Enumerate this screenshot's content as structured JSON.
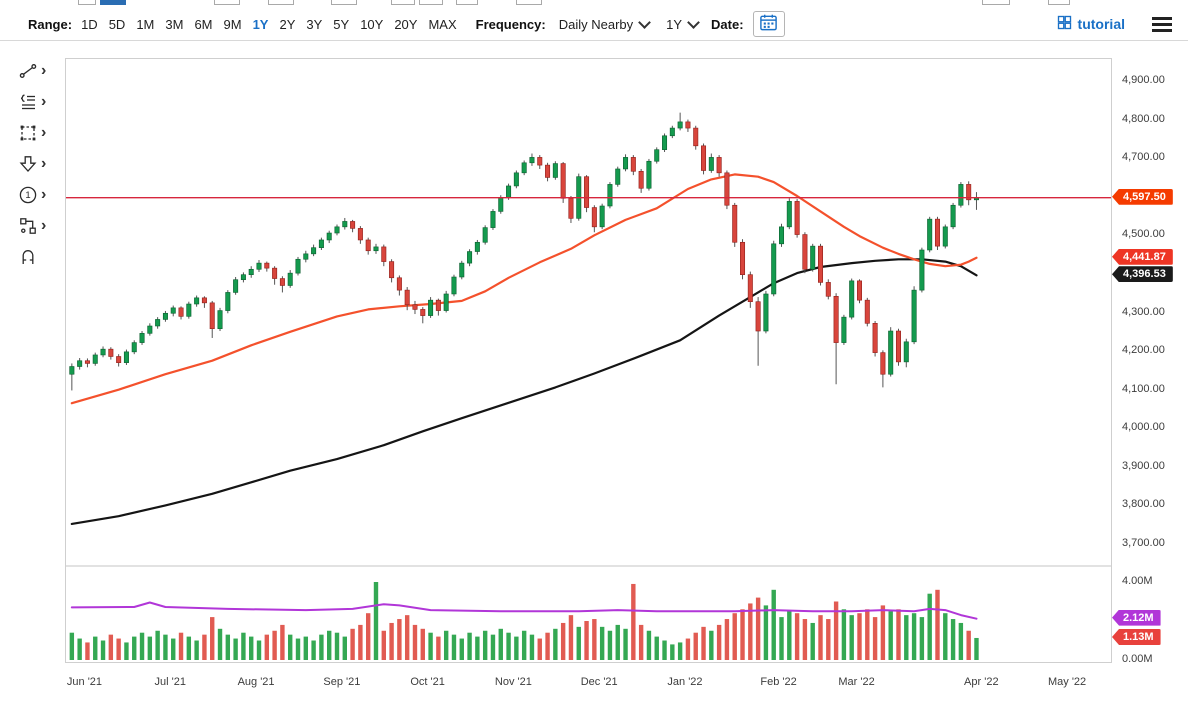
{
  "toolbar": {
    "range_label": "Range:",
    "ranges": [
      "1D",
      "5D",
      "1M",
      "3M",
      "6M",
      "9M",
      "1Y",
      "2Y",
      "3Y",
      "5Y",
      "10Y",
      "20Y",
      "MAX"
    ],
    "selected_range": "1Y",
    "frequency_label": "Frequency:",
    "frequency_value": "Daily Nearby",
    "period_value": "1Y",
    "date_label": "Date:",
    "tutorial_label": "tutorial",
    "accent_color": "#1a70c6"
  },
  "icons": {
    "submenu_chevron": "›"
  },
  "sidebar": {
    "tools": [
      {
        "name": "trend-line-tool",
        "icon": "line-icon",
        "has_submenu": true
      },
      {
        "name": "annotation-list-tool",
        "icon": "list-icon",
        "has_submenu": true
      },
      {
        "name": "selection-box-tool",
        "icon": "dashed-rect-icon",
        "has_submenu": true
      },
      {
        "name": "arrow-marker-tool",
        "icon": "down-arrow-icon",
        "has_submenu": true
      },
      {
        "name": "number-annotation-tool",
        "icon": "circled-one-icon",
        "has_submenu": true
      },
      {
        "name": "flowchart-tool",
        "icon": "connected-boxes-icon",
        "has_submenu": true
      },
      {
        "name": "magnet-snap-tool",
        "icon": "magnet-icon",
        "has_submenu": false
      }
    ]
  },
  "chart_data": {
    "type": "candlestick",
    "title": "",
    "y_domain": [
      3643,
      4957
    ],
    "colors": {
      "up": "#149a4e",
      "up_border": "#0a5e2e",
      "down": "#d8453c",
      "down_border": "#8f1f1a",
      "wick": "#555555",
      "vol_up": "#34a853",
      "vol_down": "#e15b52",
      "ma_fast": "#f4512c",
      "ma_slow": "#151515",
      "separator": "#c4c4c4"
    },
    "y_ticks": [
      {
        "label": "4,900.00",
        "value": 4900
      },
      {
        "label": "4,800.00",
        "value": 4800
      },
      {
        "label": "4,700.00",
        "value": 4700
      },
      {
        "label": "4,600.00",
        "value": 4600
      },
      {
        "label": "4,500.00",
        "value": 4500
      },
      {
        "label": "4,400.00",
        "value": 4400
      },
      {
        "label": "4,300.00",
        "value": 4300
      },
      {
        "label": "4,200.00",
        "value": 4200
      },
      {
        "label": "4,100.00",
        "value": 4100
      },
      {
        "label": "4,000.00",
        "value": 4000
      },
      {
        "label": "3,900.00",
        "value": 3900
      },
      {
        "label": "3,800.00",
        "value": 3800
      },
      {
        "label": "3,700.00",
        "value": 3700
      }
    ],
    "x_axis": {
      "total_slots": 134,
      "ticks": [
        {
          "label": "Jun '21",
          "slot": 2
        },
        {
          "label": "Jul '21",
          "slot": 13
        },
        {
          "label": "Aug '21",
          "slot": 24
        },
        {
          "label": "Sep '21",
          "slot": 35
        },
        {
          "label": "Oct '21",
          "slot": 46
        },
        {
          "label": "Nov '21",
          "slot": 57
        },
        {
          "label": "Dec '21",
          "slot": 68
        },
        {
          "label": "Jan '22",
          "slot": 79
        },
        {
          "label": "Feb '22",
          "slot": 91
        },
        {
          "label": "Mar '22",
          "slot": 101
        },
        {
          "label": "Apr '22",
          "slot": 117
        },
        {
          "label": "May '22",
          "slot": 128
        }
      ]
    },
    "candles": [
      [
        4140,
        4168,
        4098,
        4160
      ],
      [
        4160,
        4182,
        4152,
        4175
      ],
      [
        4175,
        4181,
        4158,
        4168
      ],
      [
        4168,
        4196,
        4162,
        4190
      ],
      [
        4190,
        4212,
        4184,
        4205
      ],
      [
        4205,
        4210,
        4178,
        4186
      ],
      [
        4186,
        4192,
        4160,
        4170
      ],
      [
        4170,
        4204,
        4164,
        4198
      ],
      [
        4198,
        4228,
        4192,
        4222
      ],
      [
        4222,
        4252,
        4216,
        4246
      ],
      [
        4246,
        4272,
        4240,
        4265
      ],
      [
        4265,
        4288,
        4258,
        4282
      ],
      [
        4282,
        4304,
        4276,
        4298
      ],
      [
        4298,
        4318,
        4290,
        4312
      ],
      [
        4312,
        4316,
        4282,
        4290
      ],
      [
        4290,
        4328,
        4284,
        4322
      ],
      [
        4322,
        4344,
        4315,
        4338
      ],
      [
        4338,
        4342,
        4312,
        4325
      ],
      [
        4325,
        4330,
        4234,
        4258
      ],
      [
        4258,
        4312,
        4252,
        4305
      ],
      [
        4305,
        4358,
        4298,
        4352
      ],
      [
        4352,
        4392,
        4346,
        4385
      ],
      [
        4385,
        4404,
        4378,
        4398
      ],
      [
        4398,
        4420,
        4390,
        4412
      ],
      [
        4412,
        4436,
        4405,
        4428
      ],
      [
        4428,
        4432,
        4406,
        4415
      ],
      [
        4415,
        4420,
        4372,
        4388
      ],
      [
        4388,
        4394,
        4352,
        4370
      ],
      [
        4370,
        4410,
        4364,
        4402
      ],
      [
        4402,
        4444,
        4396,
        4438
      ],
      [
        4438,
        4460,
        4430,
        4452
      ],
      [
        4452,
        4476,
        4446,
        4468
      ],
      [
        4468,
        4494,
        4462,
        4488
      ],
      [
        4488,
        4512,
        4480,
        4506
      ],
      [
        4506,
        4528,
        4500,
        4522
      ],
      [
        4522,
        4545,
        4515,
        4536
      ],
      [
        4536,
        4540,
        4508,
        4518
      ],
      [
        4518,
        4524,
        4478,
        4488
      ],
      [
        4488,
        4494,
        4450,
        4460
      ],
      [
        4460,
        4478,
        4452,
        4470
      ],
      [
        4470,
        4476,
        4420,
        4432
      ],
      [
        4432,
        4438,
        4378,
        4390
      ],
      [
        4390,
        4396,
        4344,
        4358
      ],
      [
        4358,
        4366,
        4306,
        4320
      ],
      [
        4320,
        4330,
        4296,
        4308
      ],
      [
        4308,
        4314,
        4272,
        4292
      ],
      [
        4292,
        4340,
        4286,
        4332
      ],
      [
        4332,
        4336,
        4292,
        4305
      ],
      [
        4305,
        4356,
        4300,
        4348
      ],
      [
        4348,
        4398,
        4342,
        4392
      ],
      [
        4392,
        4434,
        4386,
        4428
      ],
      [
        4428,
        4464,
        4420,
        4458
      ],
      [
        4458,
        4488,
        4450,
        4482
      ],
      [
        4482,
        4526,
        4476,
        4520
      ],
      [
        4520,
        4568,
        4514,
        4562
      ],
      [
        4562,
        4604,
        4556,
        4598
      ],
      [
        4598,
        4634,
        4592,
        4628
      ],
      [
        4628,
        4668,
        4622,
        4662
      ],
      [
        4662,
        4694,
        4656,
        4688
      ],
      [
        4688,
        4712,
        4680,
        4702
      ],
      [
        4702,
        4708,
        4672,
        4682
      ],
      [
        4682,
        4688,
        4640,
        4650
      ],
      [
        4650,
        4692,
        4644,
        4686
      ],
      [
        4686,
        4690,
        4584,
        4596
      ],
      [
        4596,
        4602,
        4532,
        4544
      ],
      [
        4544,
        4660,
        4538,
        4652
      ],
      [
        4652,
        4656,
        4560,
        4572
      ],
      [
        4572,
        4578,
        4508,
        4522
      ],
      [
        4522,
        4582,
        4516,
        4576
      ],
      [
        4576,
        4638,
        4570,
        4632
      ],
      [
        4632,
        4678,
        4626,
        4672
      ],
      [
        4672,
        4710,
        4666,
        4702
      ],
      [
        4702,
        4708,
        4656,
        4666
      ],
      [
        4666,
        4672,
        4610,
        4622
      ],
      [
        4622,
        4698,
        4616,
        4692
      ],
      [
        4692,
        4728,
        4686,
        4722
      ],
      [
        4722,
        4764,
        4716,
        4758
      ],
      [
        4758,
        4784,
        4752,
        4778
      ],
      [
        4778,
        4818,
        4772,
        4794
      ],
      [
        4794,
        4800,
        4768,
        4778
      ],
      [
        4778,
        4784,
        4722,
        4732
      ],
      [
        4732,
        4738,
        4658,
        4668
      ],
      [
        4668,
        4712,
        4662,
        4702
      ],
      [
        4702,
        4708,
        4652,
        4662
      ],
      [
        4662,
        4668,
        4568,
        4578
      ],
      [
        4578,
        4584,
        4470,
        4482
      ],
      [
        4482,
        4490,
        4386,
        4398
      ],
      [
        4398,
        4406,
        4312,
        4328
      ],
      [
        4328,
        4340,
        4162,
        4252
      ],
      [
        4252,
        4356,
        4246,
        4348
      ],
      [
        4348,
        4486,
        4342,
        4478
      ],
      [
        4478,
        4530,
        4470,
        4522
      ],
      [
        4522,
        4596,
        4516,
        4588
      ],
      [
        4588,
        4594,
        4494,
        4502
      ],
      [
        4502,
        4508,
        4402,
        4412
      ],
      [
        4412,
        4478,
        4406,
        4472
      ],
      [
        4472,
        4478,
        4370,
        4378
      ],
      [
        4378,
        4386,
        4334,
        4342
      ],
      [
        4342,
        4350,
        4114,
        4222
      ],
      [
        4222,
        4294,
        4216,
        4288
      ],
      [
        4288,
        4388,
        4282,
        4382
      ],
      [
        4382,
        4386,
        4324,
        4332
      ],
      [
        4332,
        4338,
        4264,
        4272
      ],
      [
        4272,
        4278,
        4186,
        4196
      ],
      [
        4196,
        4202,
        4106,
        4140
      ],
      [
        4140,
        4262,
        4134,
        4252
      ],
      [
        4252,
        4258,
        4162,
        4172
      ],
      [
        4172,
        4232,
        4158,
        4224
      ],
      [
        4224,
        4368,
        4218,
        4358
      ],
      [
        4358,
        4468,
        4352,
        4462
      ],
      [
        4462,
        4548,
        4456,
        4542
      ],
      [
        4542,
        4548,
        4462,
        4472
      ],
      [
        4472,
        4528,
        4466,
        4522
      ],
      [
        4522,
        4584,
        4516,
        4578
      ],
      [
        4578,
        4638,
        4572,
        4632
      ],
      [
        4632,
        4640,
        4578,
        4592
      ],
      [
        4592,
        4612,
        4566,
        4597.5
      ]
    ],
    "ma_fast": {
      "name": "50-day moving average",
      "last_value": 4441.87,
      "points": [
        [
          0,
          4065
        ],
        [
          6,
          4100
        ],
        [
          12,
          4140
        ],
        [
          18,
          4175
        ],
        [
          23,
          4215
        ],
        [
          28,
          4250
        ],
        [
          34,
          4290
        ],
        [
          38,
          4308
        ],
        [
          42,
          4316
        ],
        [
          46,
          4322
        ],
        [
          50,
          4330
        ],
        [
          53,
          4355
        ],
        [
          56,
          4390
        ],
        [
          60,
          4430
        ],
        [
          64,
          4465
        ],
        [
          67,
          4500
        ],
        [
          71,
          4540
        ],
        [
          75,
          4570
        ],
        [
          79,
          4620
        ],
        [
          82,
          4645
        ],
        [
          85,
          4658
        ],
        [
          88,
          4652
        ],
        [
          90,
          4638
        ],
        [
          93,
          4602
        ],
        [
          96,
          4562
        ],
        [
          99,
          4522
        ],
        [
          101,
          4498
        ],
        [
          104,
          4468
        ],
        [
          106,
          4452
        ],
        [
          108,
          4438
        ],
        [
          110,
          4426
        ],
        [
          112,
          4420
        ],
        [
          114,
          4424
        ],
        [
          115,
          4432
        ],
        [
          116,
          4441.87
        ]
      ]
    },
    "ma_slow": {
      "name": "200-day moving average",
      "last_value": 4396.53,
      "points": [
        [
          0,
          3752
        ],
        [
          6,
          3772
        ],
        [
          12,
          3800
        ],
        [
          18,
          3830
        ],
        [
          23,
          3860
        ],
        [
          28,
          3890
        ],
        [
          34,
          3920
        ],
        [
          40,
          3956
        ],
        [
          45,
          3992
        ],
        [
          50,
          4026
        ],
        [
          56,
          4066
        ],
        [
          62,
          4106
        ],
        [
          67,
          4142
        ],
        [
          73,
          4188
        ],
        [
          78,
          4228
        ],
        [
          83,
          4292
        ],
        [
          88,
          4352
        ],
        [
          90,
          4376
        ],
        [
          93,
          4402
        ],
        [
          96,
          4418
        ],
        [
          100,
          4428
        ],
        [
          103,
          4434
        ],
        [
          106,
          4438
        ],
        [
          109,
          4438
        ],
        [
          112,
          4432
        ],
        [
          114,
          4420
        ],
        [
          116,
          4396.53
        ]
      ]
    },
    "last_price_line": {
      "value": 4597.5,
      "label": "4,597.50",
      "color": "#d7263d"
    },
    "volume": {
      "unit": "M",
      "ylim": [
        0,
        4.85
      ],
      "y_ticks": [
        {
          "label": "4.00M",
          "value": 4
        },
        {
          "label": "0.00M",
          "value": 0
        }
      ],
      "values": [
        1.4,
        1.1,
        0.9,
        1.2,
        1.0,
        1.3,
        1.1,
        0.9,
        1.2,
        1.4,
        1.2,
        1.5,
        1.3,
        1.1,
        1.4,
        1.2,
        1.0,
        1.3,
        2.2,
        1.6,
        1.3,
        1.1,
        1.4,
        1.2,
        1.0,
        1.3,
        1.5,
        1.8,
        1.3,
        1.1,
        1.2,
        1.0,
        1.3,
        1.5,
        1.4,
        1.2,
        1.6,
        1.8,
        2.4,
        4.0,
        1.5,
        1.9,
        2.1,
        2.3,
        1.8,
        1.6,
        1.4,
        1.2,
        1.5,
        1.3,
        1.1,
        1.4,
        1.2,
        1.5,
        1.3,
        1.6,
        1.4,
        1.2,
        1.5,
        1.3,
        1.1,
        1.4,
        1.6,
        1.9,
        2.3,
        1.7,
        2.0,
        2.1,
        1.7,
        1.5,
        1.8,
        1.6,
        3.9,
        1.8,
        1.5,
        1.2,
        1.0,
        0.8,
        0.9,
        1.1,
        1.4,
        1.7,
        1.5,
        1.8,
        2.1,
        2.4,
        2.6,
        2.9,
        3.2,
        2.8,
        3.6,
        2.2,
        2.5,
        2.4,
        2.1,
        1.9,
        2.3,
        2.1,
        3.0,
        2.6,
        2.3,
        2.4,
        2.6,
        2.2,
        2.8,
        2.5,
        2.6,
        2.3,
        2.4,
        2.2,
        3.4,
        3.6,
        2.4,
        2.1,
        1.9,
        1.5,
        1.13
      ],
      "last_value": 1.13,
      "avg_line": {
        "name": "average volume",
        "color": "#b136d8",
        "last_value": 2.12,
        "points": [
          [
            0,
            2.7
          ],
          [
            8,
            2.72
          ],
          [
            10,
            2.95
          ],
          [
            12,
            2.72
          ],
          [
            20,
            2.62
          ],
          [
            30,
            2.56
          ],
          [
            36,
            2.62
          ],
          [
            40,
            2.86
          ],
          [
            42,
            2.8
          ],
          [
            46,
            2.56
          ],
          [
            55,
            2.5
          ],
          [
            65,
            2.5
          ],
          [
            70,
            2.56
          ],
          [
            75,
            2.5
          ],
          [
            85,
            2.5
          ],
          [
            90,
            2.56
          ],
          [
            95,
            2.5
          ],
          [
            100,
            2.5
          ],
          [
            104,
            2.56
          ],
          [
            108,
            2.5
          ],
          [
            110,
            2.62
          ],
          [
            112,
            2.56
          ],
          [
            114,
            2.3
          ],
          [
            116,
            2.12
          ]
        ]
      }
    },
    "price_tags": [
      {
        "name": "last-price-tag",
        "label": "4,597.50",
        "value": 4597.5,
        "bg": "#f53b00",
        "panel": "price"
      },
      {
        "name": "ma-fast-price-tag",
        "label": "4,441.87",
        "value": 4441.87,
        "bg": "#ee3524",
        "panel": "price"
      },
      {
        "name": "ma-slow-price-tag",
        "label": "4,396.53",
        "value": 4396.53,
        "bg": "#1a1a1a",
        "panel": "price"
      },
      {
        "name": "avg-volume-tag",
        "label": "2.12M",
        "value": 2.12,
        "bg": "#b136d8",
        "panel": "volume"
      },
      {
        "name": "last-volume-tag",
        "label": "1.13M",
        "value": 1.13,
        "bg": "#e8413c",
        "panel": "volume"
      }
    ]
  }
}
